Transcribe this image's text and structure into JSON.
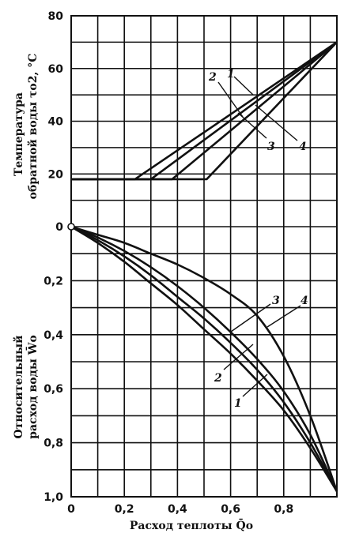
{
  "chart_data": [
    {
      "type": "line",
      "panel": "upper",
      "ylabel_line1": "Температура",
      "ylabel_line2": "обратной воды τo2, °C",
      "xlim": [
        0,
        1.0
      ],
      "ylim": [
        0,
        80
      ],
      "yticks": [
        "80",
        "60",
        "40",
        "20"
      ],
      "series": [
        {
          "name": "1",
          "x": [
            0.0,
            0.3,
            1.0
          ],
          "y": [
            18,
            18,
            70
          ]
        },
        {
          "name": "2",
          "x": [
            0.0,
            0.24,
            1.0
          ],
          "y": [
            18,
            18,
            70
          ]
        },
        {
          "name": "3",
          "x": [
            0.0,
            0.38,
            1.0
          ],
          "y": [
            18,
            18,
            70
          ]
        },
        {
          "name": "4",
          "x": [
            0.0,
            0.51,
            1.0
          ],
          "y": [
            18,
            18,
            70
          ]
        }
      ]
    },
    {
      "type": "line",
      "panel": "lower",
      "ylabel_line1": "Относительный",
      "ylabel_line2": "расход воды W̄o",
      "xlabel": "Расход теплоты Q̄o",
      "xlim": [
        0,
        1.0
      ],
      "ylim": [
        1.0,
        0
      ],
      "xticks": [
        "0",
        "0,2",
        "0,4",
        "0,6",
        "0,8"
      ],
      "yticks": [
        "0",
        "0,2",
        "0,4",
        "0,6",
        "0,8",
        "1,0"
      ],
      "series": [
        {
          "name": "1",
          "x": [
            0,
            0.1,
            0.2,
            0.3,
            0.4,
            0.5,
            0.6,
            0.7,
            0.8,
            0.9,
            1.0
          ],
          "y": [
            0,
            0.06,
            0.13,
            0.21,
            0.29,
            0.38,
            0.47,
            0.57,
            0.68,
            0.82,
            0.98
          ]
        },
        {
          "name": "2",
          "x": [
            0,
            0.1,
            0.2,
            0.3,
            0.4,
            0.5,
            0.6,
            0.7,
            0.8,
            0.9,
            1.0
          ],
          "y": [
            0,
            0.05,
            0.11,
            0.18,
            0.26,
            0.34,
            0.43,
            0.53,
            0.65,
            0.8,
            0.98
          ]
        },
        {
          "name": "3",
          "x": [
            0,
            0.1,
            0.2,
            0.3,
            0.4,
            0.5,
            0.6,
            0.7,
            0.8,
            0.9,
            1.0
          ],
          "y": [
            0,
            0.04,
            0.09,
            0.15,
            0.22,
            0.3,
            0.39,
            0.49,
            0.61,
            0.77,
            0.98
          ]
        },
        {
          "name": "4",
          "x": [
            0,
            0.1,
            0.2,
            0.3,
            0.4,
            0.5,
            0.6,
            0.7,
            0.8,
            0.9,
            1.0
          ],
          "y": [
            0,
            0.03,
            0.06,
            0.1,
            0.14,
            0.19,
            0.25,
            0.33,
            0.48,
            0.7,
            0.98
          ]
        }
      ]
    }
  ],
  "callouts": {
    "upper": [
      "2",
      "1",
      "3",
      "4"
    ],
    "lower": [
      "3",
      "4",
      "2",
      "1"
    ]
  }
}
